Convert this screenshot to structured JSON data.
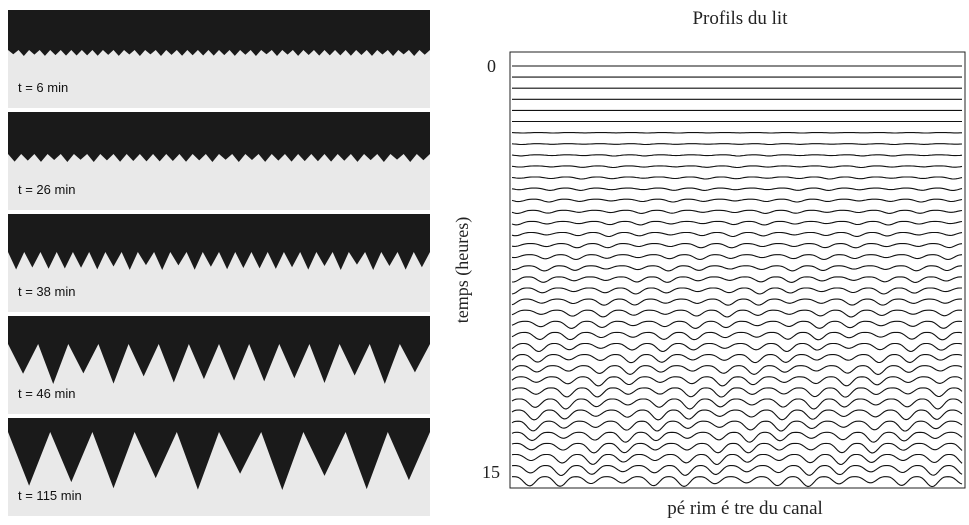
{
  "panels": [
    {
      "label": "t = 6 min"
    },
    {
      "label": "t = 26 min"
    },
    {
      "label": "t = 38 min"
    },
    {
      "label": "t = 46 min"
    },
    {
      "label": "t = 115 min"
    }
  ],
  "plot": {
    "title": "Profils du lit",
    "y_label": "temps (heures)",
    "x_label": "pé rim é tre du canal",
    "y_ticks": [
      0,
      15
    ]
  }
}
